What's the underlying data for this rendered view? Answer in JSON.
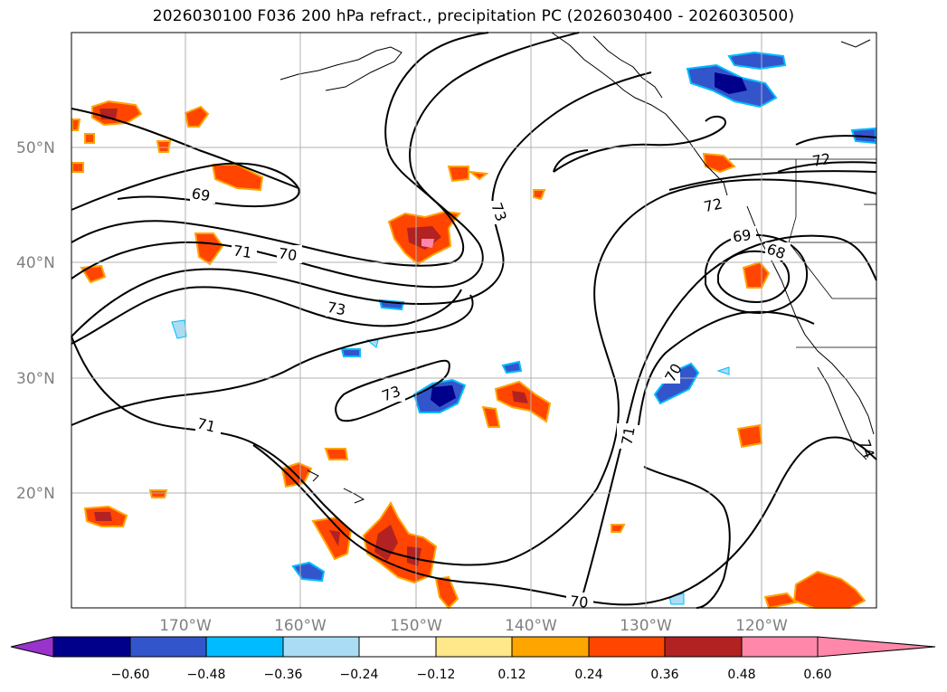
{
  "title": "2026030100 F036 200 hPa refract., precipitation PC (2026030400 - 2026030500)",
  "map": {
    "lat_labels": [
      "50°N",
      "40°N",
      "30°N",
      "20°N"
    ],
    "lon_labels": [
      "170°W",
      "160°W",
      "150°W",
      "140°W",
      "130°W",
      "120°W"
    ],
    "contour_labels": [
      "69",
      "71",
      "70",
      "73",
      "73",
      "71",
      "73",
      "71",
      "72",
      "69",
      "68",
      "70",
      "70",
      "72",
      "74",
      "70"
    ]
  },
  "colorbar": {
    "ticks": [
      "−0.60",
      "−0.48",
      "−0.36",
      "−0.24",
      "−0.12",
      "0.12",
      "0.24",
      "0.36",
      "0.48",
      "0.60"
    ],
    "colors": [
      "#9933cc",
      "#00008b",
      "#3355cc",
      "#00bbff",
      "#aaddf5",
      "#ffffff",
      "#ffe88a",
      "#ffa500",
      "#ff4500",
      "#b22222",
      "#ff88aa"
    ]
  }
}
